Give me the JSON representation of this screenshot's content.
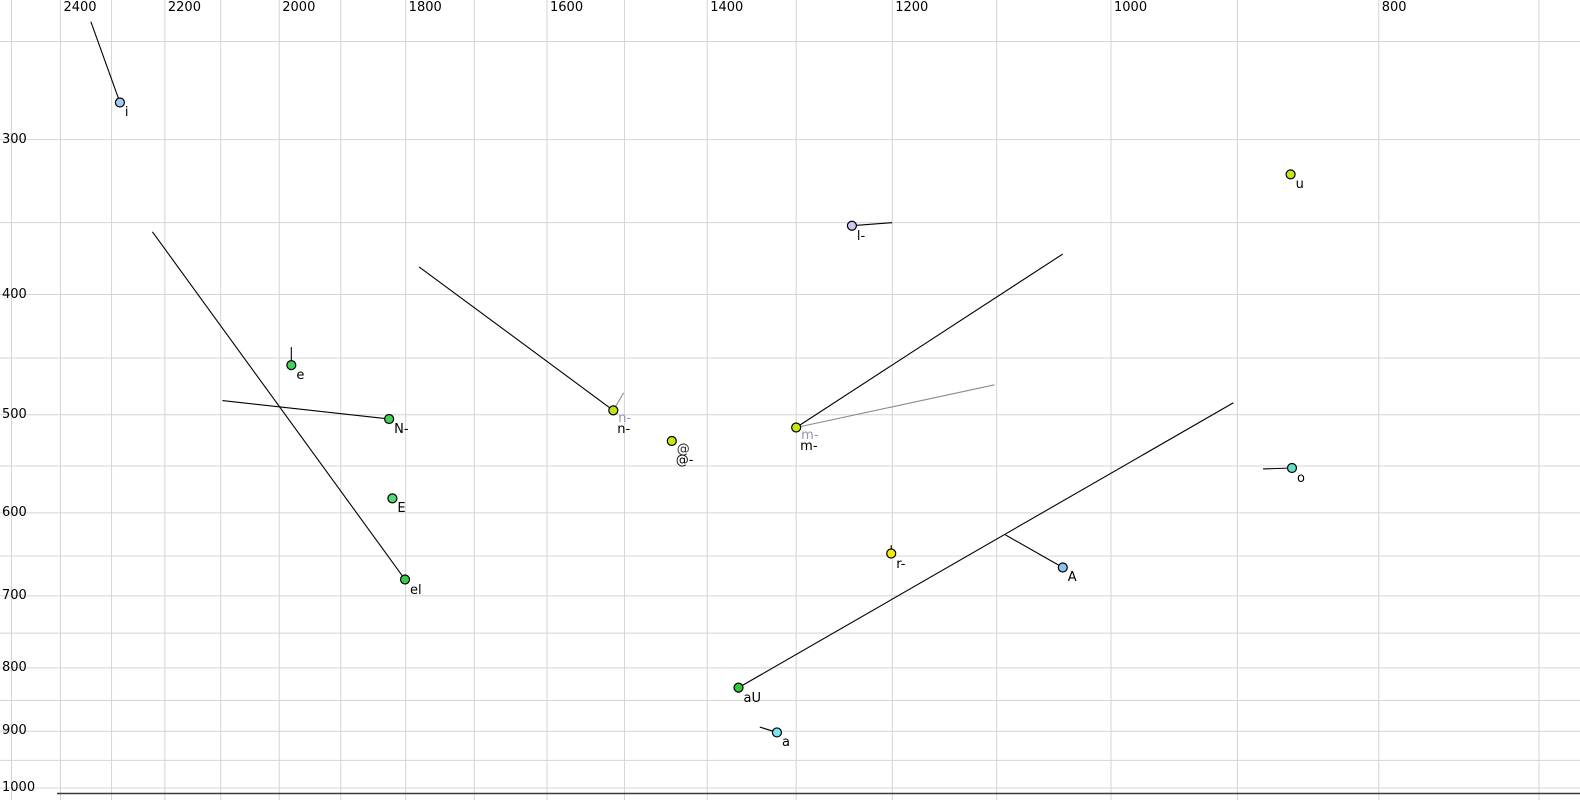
{
  "chart_data": {
    "type": "scatter",
    "title": "",
    "description": "F1-F2 vowel formant chart (log-log, both axes reversed) with vowel tokens and formant-movement tail lines",
    "x_axis": {
      "label": "",
      "unit": "Hz",
      "scale": "log",
      "direction": "reversed-right-to-left",
      "major_ticks": [
        2400,
        2200,
        2000,
        1800,
        1600,
        1400,
        1200,
        1000,
        800
      ],
      "minor_gridline_step": 100,
      "visible_range": [
        2525,
        676
      ]
    },
    "y_axis": {
      "label": "",
      "unit": "Hz",
      "scale": "log",
      "direction": "reversed-top-to-bottom",
      "major_ticks": [
        300,
        400,
        500,
        600,
        700,
        800,
        900,
        1000
      ],
      "minor_gridline_step": 50,
      "visible_range": [
        232,
        1023
      ]
    },
    "grid": {
      "color": "#d4d4d4",
      "baseline_color": "#3a3a3a"
    },
    "points": [
      {
        "f2": 2284,
        "f1": 280,
        "fill": "#a6c9f0",
        "labels": [
          {
            "text": "i",
            "color": "#000000"
          }
        ],
        "tails": [
          {
            "f2": 2340,
            "f1": 241,
            "color": "#000000"
          }
        ]
      },
      {
        "f2": 861,
        "f1": 320,
        "fill": "#c9e512",
        "labels": [
          {
            "text": "u",
            "color": "#000000"
          }
        ],
        "tails": []
      },
      {
        "f2": 1241,
        "f1": 352,
        "fill": "#c9c9f0",
        "labels": [
          {
            "text": "l-",
            "color": "#000000"
          }
        ],
        "tails": [
          {
            "f2": 1200,
            "f1": 350,
            "color": "#000000"
          }
        ]
      },
      {
        "f2": 1980,
        "f1": 456,
        "fill": "#45d158",
        "labels": [
          {
            "text": "e",
            "color": "#000000"
          }
        ],
        "tails": [
          {
            "f2": 1980,
            "f1": 441,
            "color": "#000000"
          }
        ]
      },
      {
        "f2": 1825,
        "f1": 504,
        "fill": "#45d158",
        "labels": [
          {
            "text": "N-",
            "color": "#000000"
          }
        ],
        "tails": [
          {
            "f2": 2097,
            "f1": 487,
            "color": "#000000"
          }
        ]
      },
      {
        "f2": 1514,
        "f1": 496,
        "fill": "#c0e213",
        "labels": [
          {
            "text": "n-",
            "color": "#9494b4"
          },
          {
            "text": "n-",
            "color": "#000000"
          }
        ],
        "tails": [
          {
            "f2": 1501,
            "f1": 480,
            "color": "#8a8a8a"
          },
          {
            "f2": 1780,
            "f1": 380,
            "color": "#000000"
          }
        ]
      },
      {
        "f2": 1442,
        "f1": 525,
        "fill": "#c9e613",
        "labels": [
          {
            "text": "@",
            "color": "#2a2a2a"
          },
          {
            "text": "@-",
            "color": "#000000"
          }
        ],
        "tails": []
      },
      {
        "f2": 1300,
        "f1": 512,
        "fill": "#c9e613",
        "labels": [
          {
            "text": "m-",
            "color": "#9494b4"
          },
          {
            "text": "m-",
            "color": "#000000"
          }
        ],
        "tails": [
          {
            "f2": 1102,
            "f1": 473,
            "color": "#8a8a8a"
          },
          {
            "f2": 1041,
            "f1": 371,
            "color": "#000000"
          }
        ]
      },
      {
        "f2": 1820,
        "f1": 584,
        "fill": "#52da74",
        "labels": [
          {
            "text": "E",
            "color": "#000000"
          }
        ],
        "tails": []
      },
      {
        "f2": 1801,
        "f1": 679,
        "fill": "#36ce47",
        "labels": [
          {
            "text": "el",
            "color": "#000000"
          }
        ],
        "tails": [
          {
            "f2": 2223,
            "f1": 356,
            "color": "#000000"
          }
        ]
      },
      {
        "f2": 860,
        "f1": 552,
        "fill": "#5ee0cd",
        "labels": [
          {
            "text": "o",
            "color": "#000000"
          }
        ],
        "tails": [
          {
            "f2": 881,
            "f1": 553,
            "color": "#000000"
          }
        ]
      },
      {
        "f2": 1201,
        "f1": 647,
        "fill": "#f6ee00",
        "labels": [
          {
            "text": "r-",
            "color": "#000000"
          }
        ],
        "tails": [
          {
            "f2": 1201,
            "f1": 637,
            "color": "#000000"
          }
        ]
      },
      {
        "f2": 1041,
        "f1": 664,
        "fill": "#8cc2ef",
        "labels": [
          {
            "text": "A",
            "color": "#000000"
          }
        ],
        "tails": [
          {
            "f2": 1092,
            "f1": 625,
            "color": "#000000"
          }
        ]
      },
      {
        "f2": 1364,
        "f1": 830,
        "fill": "#2fcb31",
        "labels": [
          {
            "text": "aU",
            "color": "#000000"
          }
        ],
        "tails": [
          {
            "f2": 903,
            "f1": 489,
            "color": "#000000"
          }
        ]
      },
      {
        "f2": 1321,
        "f1": 902,
        "fill": "#7fe2ee",
        "labels": [
          {
            "text": "a",
            "color": "#000000"
          }
        ],
        "tails": [
          {
            "f2": 1340,
            "f1": 893,
            "color": "#000000"
          }
        ]
      }
    ]
  }
}
